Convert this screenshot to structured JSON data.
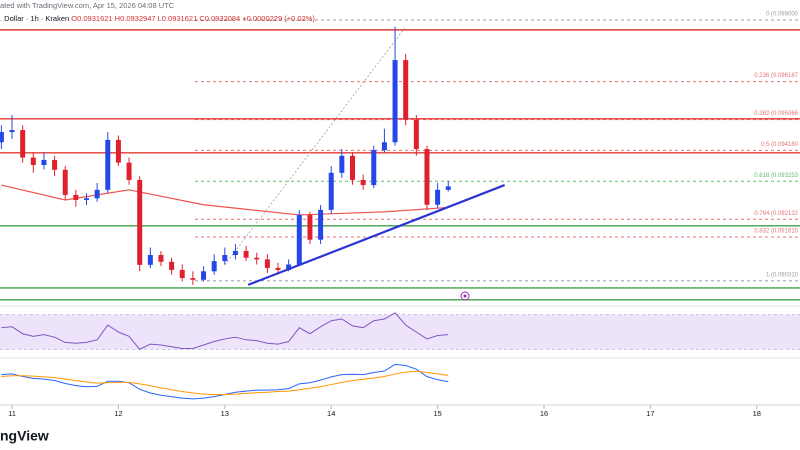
{
  "header": {
    "line1": "ated with TradingView.com, Apr 15, 2026 04:08 UTC",
    "symbol": ". Dollar · 1h · Kraken",
    "ohlc": "O0.0931621 H0.0932947 L0.0931621 C0.0932084",
    "change": "+0.0000229 (+0.02%)"
  },
  "chart_data": {
    "type": "candlestick",
    "x": [
      10.9,
      11.0,
      11.1,
      11.2,
      11.3,
      11.4,
      11.5,
      11.6,
      11.7,
      11.8,
      11.9,
      12.0,
      12.1,
      12.2,
      12.3,
      12.4,
      12.5,
      12.6,
      12.7,
      12.8,
      12.9,
      13.0,
      13.1,
      13.2,
      13.3,
      13.4,
      13.5,
      13.6,
      13.7,
      13.8,
      13.9,
      14.0,
      14.1,
      14.2,
      14.3,
      14.4,
      14.5,
      14.6,
      14.7,
      14.8,
      14.9,
      15.0,
      15.1
    ],
    "open": [
      0.0944,
      0.0947,
      0.09476,
      0.09395,
      0.09373,
      0.09388,
      0.09359,
      0.09285,
      0.0927,
      0.09275,
      0.093,
      0.09447,
      0.0938,
      0.09329,
      0.09079,
      0.09108,
      0.09088,
      0.09064,
      0.0904,
      0.09035,
      0.0906,
      0.0909,
      0.09108,
      0.0912,
      0.091,
      0.09095,
      0.0907,
      0.09064,
      0.0908,
      0.09226,
      0.09153,
      0.09241,
      0.0935,
      0.094,
      0.09329,
      0.09314,
      0.09417,
      0.0944,
      0.09682,
      0.09506,
      0.0942,
      0.09256,
      0.093
    ],
    "high": [
      0.0949,
      0.0952,
      0.0949,
      0.0941,
      0.0941,
      0.094,
      0.0937,
      0.093,
      0.0929,
      0.0932,
      0.0947,
      0.0946,
      0.09395,
      0.0934,
      0.0913,
      0.0912,
      0.091,
      0.0908,
      0.0906,
      0.09075,
      0.0911,
      0.0913,
      0.0914,
      0.09135,
      0.09115,
      0.0911,
      0.09085,
      0.09095,
      0.0924,
      0.09235,
      0.09255,
      0.0937,
      0.0942,
      0.0941,
      0.09345,
      0.0943,
      0.0948,
      0.0978,
      0.097,
      0.0952,
      0.0943,
      0.0932,
      0.09325
    ],
    "low": [
      0.0942,
      0.0945,
      0.0938,
      0.0935,
      0.0936,
      0.0934,
      0.0927,
      0.0925,
      0.09255,
      0.09265,
      0.0929,
      0.0937,
      0.09315,
      0.0906,
      0.0907,
      0.09075,
      0.0905,
      0.0903,
      0.0902,
      0.0903,
      0.0905,
      0.0908,
      0.09095,
      0.0909,
      0.0908,
      0.09055,
      0.0905,
      0.0906,
      0.09075,
      0.0914,
      0.0914,
      0.0923,
      0.09335,
      0.09315,
      0.093,
      0.09305,
      0.0941,
      0.0943,
      0.0949,
      0.094,
      0.0924,
      0.09245,
      0.09295
    ],
    "close": [
      0.0947,
      0.09476,
      0.09395,
      0.09373,
      0.09388,
      0.09359,
      0.09285,
      0.0927,
      0.09275,
      0.093,
      0.09447,
      0.0938,
      0.09329,
      0.09079,
      0.09108,
      0.09088,
      0.09064,
      0.0904,
      0.09035,
      0.0906,
      0.0909,
      0.09108,
      0.0912,
      0.091,
      0.09095,
      0.0907,
      0.09064,
      0.0908,
      0.09226,
      0.09153,
      0.09241,
      0.0935,
      0.094,
      0.09329,
      0.09314,
      0.09417,
      0.0944,
      0.09682,
      0.09506,
      0.0942,
      0.09256,
      0.093,
      0.0931
    ],
    "up_color": "#2447e8",
    "down_color": "#e0202e",
    "xlim": [
      10.887,
      18.406
    ],
    "xticks": [
      11,
      12,
      13,
      14,
      15,
      16,
      17,
      18
    ],
    "ylim": [
      0.08946,
      0.09859
    ],
    "fib_levels": [
      {
        "value": 0.098,
        "label": "0 (0.098000",
        "color": "#9e9e9e"
      },
      {
        "value": 0.096187,
        "label": "0.236 (0.096187",
        "color": "#e57373"
      },
      {
        "value": 0.095066,
        "label": "0.382 (0.095066",
        "color": "#e57373"
      },
      {
        "value": 0.09416,
        "label": "0.5 (0.094160",
        "color": "#e57373"
      },
      {
        "value": 0.093253,
        "label": "0.618 (0.093253",
        "color": "#66bb6a"
      },
      {
        "value": 0.092132,
        "label": "0.764 (0.092132",
        "color": "#e57373"
      },
      {
        "value": 0.09161,
        "label": "0.832 (0.091610",
        "color": "#e57373"
      },
      {
        "value": 0.09032,
        "label": "1 (0.090320",
        "color": "#9e9e9e"
      }
    ],
    "resistance_lines": {
      "color": "#e53935",
      "values": [
        0.09771,
        0.09509,
        0.09409
      ]
    },
    "support_lines": {
      "color": "#43a047",
      "values": [
        0.09194,
        0.09011,
        0.08976
      ]
    },
    "moving_average": {
      "color": "#ef5350",
      "x": [
        10.9,
        11.5,
        12.1,
        12.8,
        13.7,
        14.5,
        15.1
      ],
      "values": [
        0.09314,
        0.0927,
        0.093,
        0.09256,
        0.09226,
        0.09235,
        0.09248
      ]
    },
    "trendline": {
      "color": "#2b35d6",
      "x": [
        13.22,
        15.63
      ],
      "values": [
        0.0902,
        0.09314
      ]
    },
    "fib_trendline": {
      "color": "#9e9e9e",
      "x": [
        13.0,
        14.69
      ],
      "values": [
        0.09079,
        0.09776
      ]
    },
    "rsi": {
      "color": "#7e57c2",
      "band_color": "#ede4fb",
      "ylim": [
        20,
        80
      ],
      "band": [
        30,
        70
      ],
      "values": [
        55,
        56,
        48,
        45,
        47,
        44,
        38,
        37,
        38,
        41,
        58,
        50,
        45,
        30,
        36,
        35,
        33,
        31,
        31,
        35,
        39,
        42,
        44,
        41,
        40,
        37,
        36,
        39,
        55,
        48,
        56,
        63,
        65,
        57,
        55,
        63,
        65,
        72,
        58,
        50,
        42,
        46,
        47
      ]
    },
    "macd": {
      "ylim": [
        -0.0006,
        0.0006
      ],
      "series": [
        {
          "color": "#2962ff",
          "values": [
            0.0002,
            0.00022,
            0.00015,
            0.0001,
            8e-05,
            4e-05,
            -4e-05,
            -0.0001,
            -0.00013,
            -0.00012,
            2e-05,
            2e-05,
            -2e-05,
            -0.0002,
            -0.0003,
            -0.00036,
            -0.0004,
            -0.00044,
            -0.00046,
            -0.00044,
            -0.0004,
            -0.00034,
            -0.00028,
            -0.00025,
            -0.00022,
            -0.00022,
            -0.00021,
            -0.00018,
            -5e-05,
            -2e-05,
            5e-05,
            0.00014,
            0.0002,
            0.00021,
            0.0002,
            0.00026,
            0.0003,
            0.00048,
            0.00045,
            0.00035,
            0.00015,
            6e-05,
            1e-05
          ]
        },
        {
          "color": "#ff9800",
          "values": [
            0.00015,
            0.00017,
            0.00017,
            0.00016,
            0.00014,
            0.00012,
            8e-05,
            4e-05,
            0.0,
            -3e-05,
            -2e-05,
            -1e-05,
            -1e-05,
            -5e-05,
            -0.0001,
            -0.00016,
            -0.00021,
            -0.00026,
            -0.0003,
            -0.00033,
            -0.00034,
            -0.00034,
            -0.00033,
            -0.00031,
            -0.00029,
            -0.00028,
            -0.00026,
            -0.00025,
            -0.00021,
            -0.00017,
            -0.00013,
            -7e-05,
            -1e-05,
            4e-05,
            7e-05,
            0.00011,
            0.00015,
            0.00022,
            0.00027,
            0.00029,
            0.00026,
            0.00022,
            0.00018
          ]
        }
      ]
    }
  },
  "logo_text": "ngView"
}
